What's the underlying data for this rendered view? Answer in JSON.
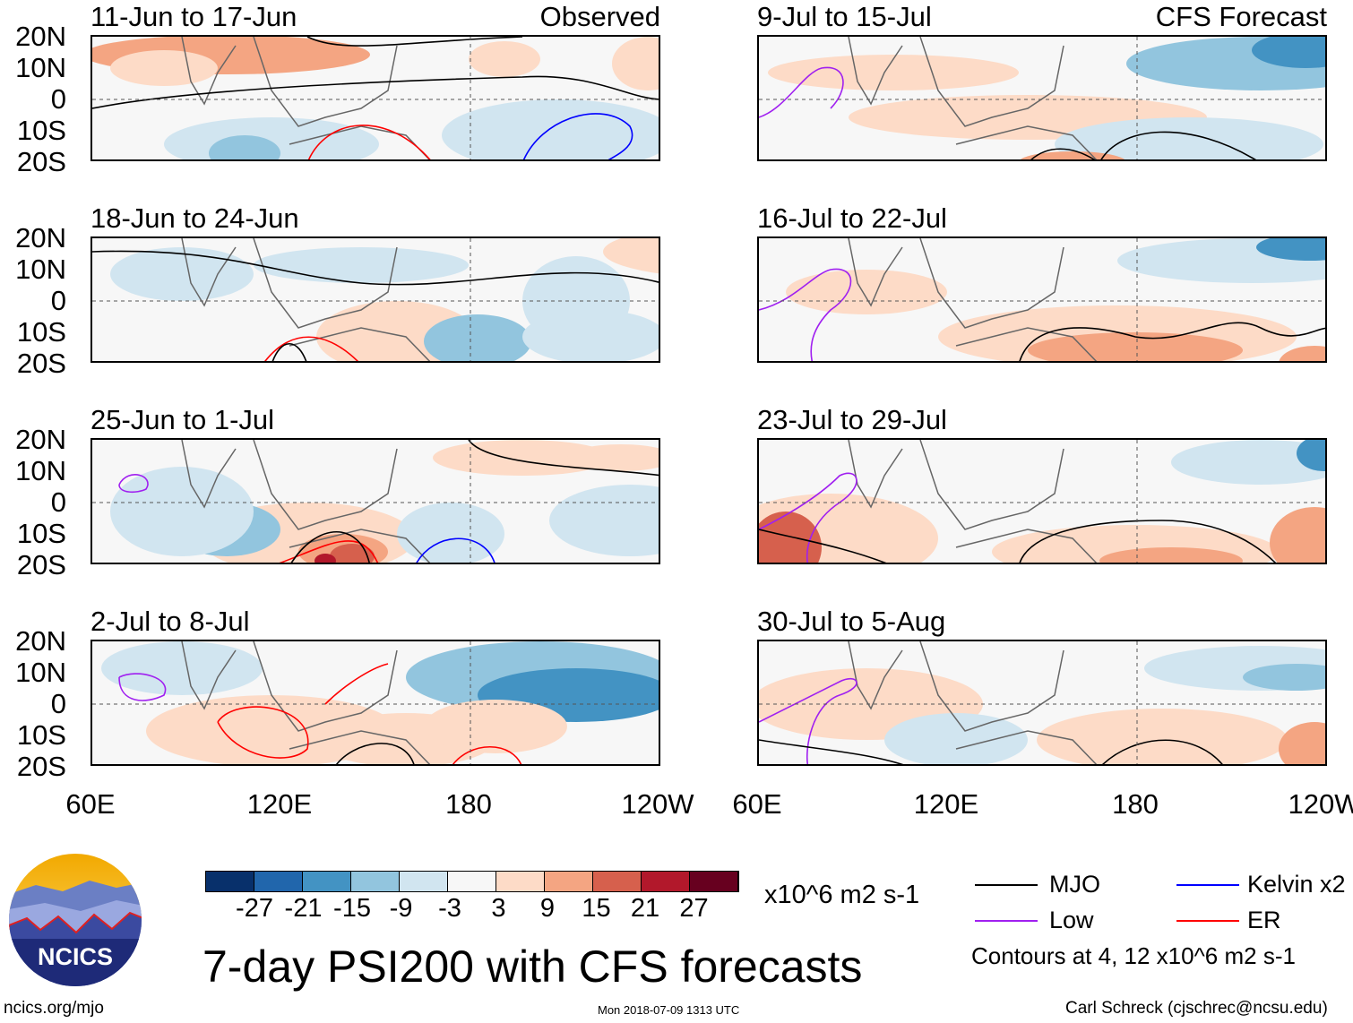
{
  "panels_observed": [
    {
      "title": "11-Jun to 17-Jun",
      "tag": "Observed"
    },
    {
      "title": "18-Jun to 24-Jun"
    },
    {
      "title": "25-Jun to 1-Jul"
    },
    {
      "title": "2-Jul to 8-Jul"
    }
  ],
  "panels_forecast": [
    {
      "title": "9-Jul to 15-Jul",
      "tag": "CFS Forecast"
    },
    {
      "title": "16-Jul to 22-Jul"
    },
    {
      "title": "23-Jul to 29-Jul"
    },
    {
      "title": "30-Jul to 5-Aug"
    }
  ],
  "lat_labels": [
    "20N",
    "10N",
    "0",
    "10S",
    "20S"
  ],
  "lon_labels": [
    "60E",
    "120E",
    "180",
    "120W"
  ],
  "colorbar": {
    "colors": [
      "#08306b",
      "#2166ac",
      "#4393c3",
      "#92c5de",
      "#d1e5f0",
      "#f7f7f7",
      "#fddbc7",
      "#f4a582",
      "#d6604d",
      "#b2182b",
      "#67001f"
    ],
    "labels": [
      "-27",
      "-21",
      "-15",
      "-9",
      "-3",
      "3",
      "9",
      "15",
      "21",
      "27"
    ],
    "units": "x10^6 m2 s-1"
  },
  "title": "7-day PSI200 with CFS forecasts",
  "legend": {
    "items": [
      {
        "label": "MJO",
        "color": "#000000"
      },
      {
        "label": "Kelvin x2",
        "color": "#0000ff"
      },
      {
        "label": "Low",
        "color": "#a020f0"
      },
      {
        "label": "ER",
        "color": "#ff0000"
      }
    ],
    "note": "Contours at 4, 12 x10^6 m2 s-1"
  },
  "logo_text": "NCICS",
  "footer": {
    "url": "ncics.org/mjo",
    "timestamp": "Mon 2018-07-09 1313 UTC",
    "credit": "Carl Schreck (cjschrec@ncsu.edu)"
  }
}
